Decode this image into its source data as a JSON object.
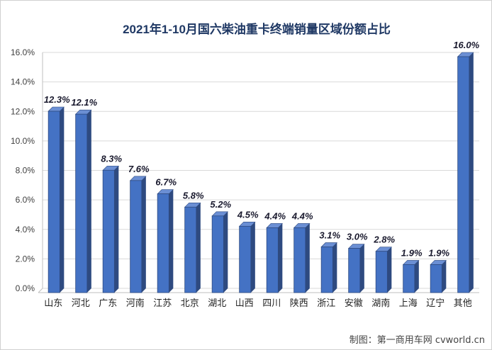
{
  "chart_data": {
    "type": "bar",
    "title": "2021年1-10月国六柴油重卡终端销量区域份额占比",
    "categories": [
      "山东",
      "河北",
      "广东",
      "河南",
      "江苏",
      "北京",
      "湖北",
      "山西",
      "四川",
      "陕西",
      "浙江",
      "安徽",
      "湖南",
      "上海",
      "辽宁",
      "其他"
    ],
    "values": [
      12.3,
      12.1,
      8.3,
      7.6,
      6.7,
      5.8,
      5.2,
      4.5,
      4.4,
      4.4,
      3.1,
      3.0,
      2.8,
      1.9,
      1.9,
      16.0
    ],
    "data_labels": [
      "12.3%",
      "12.1%",
      "8.3%",
      "7.6%",
      "6.7%",
      "5.8%",
      "5.2%",
      "4.5%",
      "4.4%",
      "4.4%",
      "3.1%",
      "3.0%",
      "2.8%",
      "1.9%",
      "1.9%",
      "16.0%"
    ],
    "ylim": [
      0,
      16
    ],
    "yticks": [
      0,
      2,
      4,
      6,
      8,
      10,
      12,
      14,
      16
    ],
    "ytick_labels": [
      "0.0%",
      "2.0%",
      "4.0%",
      "6.0%",
      "8.0%",
      "10.0%",
      "12.0%",
      "14.0%",
      "16.0%"
    ],
    "xlabel": "",
    "ylabel": "",
    "grid": true,
    "legend": "none",
    "bar_color": "#4472c4",
    "bar_dark_color": "#2e4a80",
    "bar_top_color": "#6b8fd4",
    "grid_color": "#d9d9d9"
  },
  "credit": "制图：第一商用车网 cvworld.cn"
}
